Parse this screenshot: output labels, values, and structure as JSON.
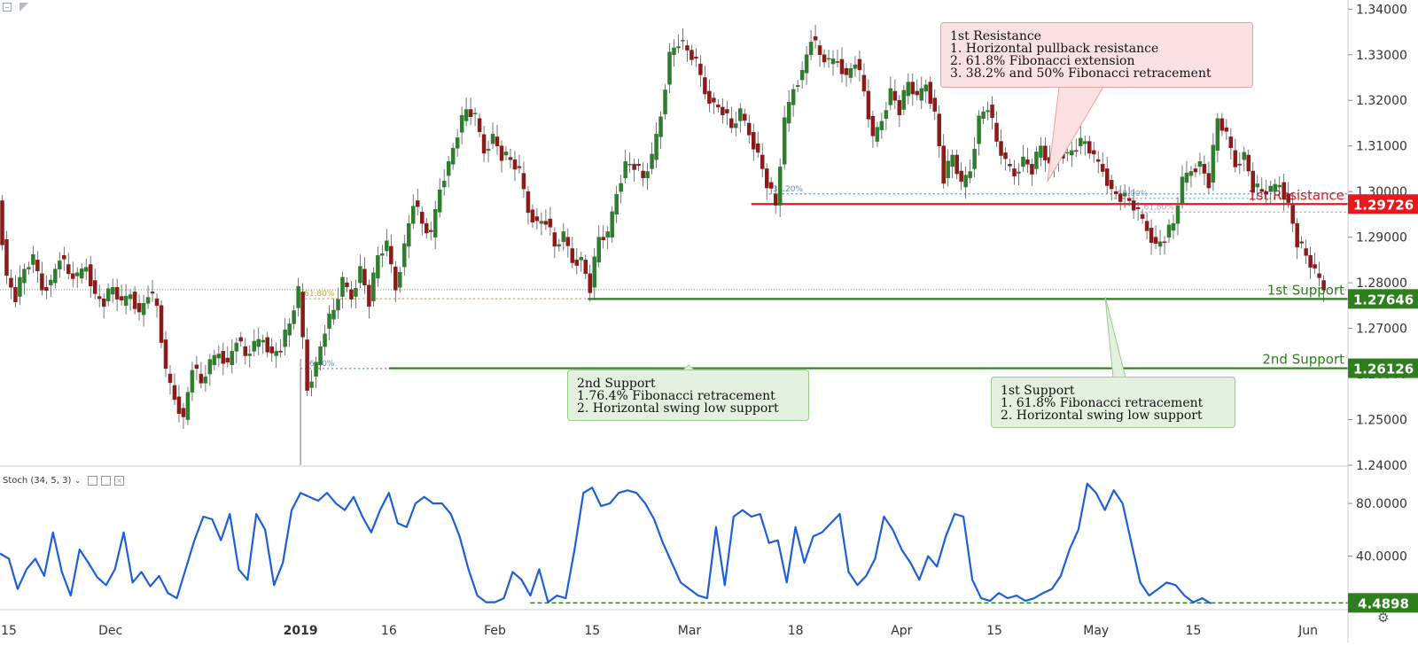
{
  "window": {
    "collapse_icon": "square-minus-icon",
    "flag_icon": "corner-flag-icon"
  },
  "chart_data": {
    "type": "line",
    "instrument_panel": {
      "ylim": [
        1.24,
        1.342
      ],
      "y_ticks": [
        "1.34000",
        "1.33000",
        "1.32000",
        "1.31000",
        "1.30000",
        "1.29000",
        "1.28000",
        "1.27000",
        "1.26000",
        "1.25000",
        "1.24000"
      ],
      "price_path": [
        [
          0,
          1.298
        ],
        [
          2,
          1.281
        ],
        [
          4,
          1.277
        ],
        [
          6,
          1.283
        ],
        [
          8,
          1.285
        ],
        [
          10,
          1.279
        ],
        [
          12,
          1.28
        ],
        [
          14,
          1.286
        ],
        [
          16,
          1.282
        ],
        [
          18,
          1.281
        ],
        [
          20,
          1.284
        ],
        [
          22,
          1.277
        ],
        [
          24,
          1.276
        ],
        [
          26,
          1.279
        ],
        [
          28,
          1.275
        ],
        [
          30,
          1.278
        ],
        [
          32,
          1.273
        ],
        [
          34,
          1.278
        ],
        [
          36,
          1.275
        ],
        [
          38,
          1.26
        ],
        [
          40,
          1.255
        ],
        [
          42,
          1.25
        ],
        [
          44,
          1.262
        ],
        [
          46,
          1.258
        ],
        [
          48,
          1.262
        ],
        [
          50,
          1.265
        ],
        [
          52,
          1.262
        ],
        [
          54,
          1.268
        ],
        [
          56,
          1.264
        ],
        [
          58,
          1.266
        ],
        [
          60,
          1.268
        ],
        [
          62,
          1.264
        ],
        [
          64,
          1.266
        ],
        [
          66,
          1.271
        ],
        [
          68,
          1.278
        ],
        [
          70,
          1.257
        ],
        [
          72,
          1.262
        ],
        [
          74,
          1.27
        ],
        [
          76,
          1.274
        ],
        [
          78,
          1.28
        ],
        [
          80,
          1.277
        ],
        [
          82,
          1.283
        ],
        [
          84,
          1.276
        ],
        [
          86,
          1.286
        ],
        [
          88,
          1.288
        ],
        [
          90,
          1.279
        ],
        [
          92,
          1.288
        ],
        [
          94,
          1.298
        ],
        [
          96,
          1.293
        ],
        [
          98,
          1.29
        ],
        [
          100,
          1.301
        ],
        [
          102,
          1.306
        ],
        [
          104,
          1.313
        ],
        [
          106,
          1.318
        ],
        [
          108,
          1.316
        ],
        [
          110,
          1.309
        ],
        [
          112,
          1.312
        ],
        [
          114,
          1.308
        ],
        [
          116,
          1.307
        ],
        [
          118,
          1.304
        ],
        [
          120,
          1.296
        ],
        [
          122,
          1.293
        ],
        [
          124,
          1.294
        ],
        [
          126,
          1.288
        ],
        [
          128,
          1.29
        ],
        [
          130,
          1.285
        ],
        [
          132,
          1.285
        ],
        [
          134,
          1.279
        ],
        [
          136,
          1.29
        ],
        [
          138,
          1.29
        ],
        [
          140,
          1.3
        ],
        [
          142,
          1.306
        ],
        [
          144,
          1.306
        ],
        [
          146,
          1.303
        ],
        [
          148,
          1.307
        ],
        [
          150,
          1.317
        ],
        [
          152,
          1.33
        ],
        [
          154,
          1.333
        ],
        [
          156,
          1.331
        ],
        [
          158,
          1.328
        ],
        [
          160,
          1.322
        ],
        [
          162,
          1.319
        ],
        [
          164,
          1.318
        ],
        [
          166,
          1.314
        ],
        [
          168,
          1.317
        ],
        [
          170,
          1.313
        ],
        [
          172,
          1.308
        ],
        [
          174,
          1.302
        ],
        [
          176,
          1.297
        ],
        [
          178,
          1.315
        ],
        [
          180,
          1.323
        ],
        [
          182,
          1.326
        ],
        [
          184,
          1.334
        ],
        [
          186,
          1.33
        ],
        [
          188,
          1.328
        ],
        [
          190,
          1.329
        ],
        [
          192,
          1.325
        ],
        [
          194,
          1.329
        ],
        [
          196,
          1.322
        ],
        [
          198,
          1.311
        ],
        [
          200,
          1.316
        ],
        [
          202,
          1.322
        ],
        [
          204,
          1.318
        ],
        [
          206,
          1.324
        ],
        [
          208,
          1.32
        ],
        [
          210,
          1.324
        ],
        [
          212,
          1.317
        ],
        [
          214,
          1.303
        ],
        [
          216,
          1.308
        ],
        [
          218,
          1.301
        ],
        [
          220,
          1.305
        ],
        [
          222,
          1.316
        ],
        [
          224,
          1.319
        ],
        [
          226,
          1.311
        ],
        [
          228,
          1.306
        ],
        [
          230,
          1.304
        ],
        [
          232,
          1.307
        ],
        [
          234,
          1.305
        ],
        [
          236,
          1.31
        ],
        [
          238,
          1.305
        ],
        [
          240,
          1.309
        ],
        [
          242,
          1.308
        ],
        [
          244,
          1.31
        ],
        [
          246,
          1.311
        ],
        [
          248,
          1.307
        ],
        [
          250,
          1.305
        ],
        [
          252,
          1.3
        ],
        [
          254,
          1.299
        ],
        [
          256,
          1.298
        ],
        [
          258,
          1.295
        ],
        [
          260,
          1.292
        ],
        [
          262,
          1.288
        ],
        [
          264,
          1.29
        ],
        [
          266,
          1.293
        ],
        [
          268,
          1.302
        ],
        [
          270,
          1.305
        ],
        [
          272,
          1.306
        ],
        [
          274,
          1.302
        ],
        [
          276,
          1.316
        ],
        [
          278,
          1.312
        ],
        [
          280,
          1.306
        ],
        [
          282,
          1.308
        ],
        [
          284,
          1.301
        ],
        [
          286,
          1.3
        ],
        [
          288,
          1.3
        ],
        [
          290,
          1.302
        ],
        [
          292,
          1.297
        ],
        [
          294,
          1.289
        ],
        [
          296,
          1.286
        ],
        [
          298,
          1.282
        ],
        [
          300,
          1.279
        ]
      ]
    },
    "oscillator_panel": {
      "label": "Stoch (34, 5, 3)",
      "ylim": [
        0,
        107
      ],
      "y_ticks": [
        "80.0000",
        "40.0000"
      ],
      "k_path": [
        [
          0,
          42
        ],
        [
          2,
          38
        ],
        [
          4,
          15
        ],
        [
          6,
          30
        ],
        [
          8,
          38
        ],
        [
          10,
          25
        ],
        [
          12,
          58
        ],
        [
          14,
          28
        ],
        [
          16,
          10
        ],
        [
          18,
          45
        ],
        [
          20,
          35
        ],
        [
          22,
          24
        ],
        [
          24,
          18
        ],
        [
          26,
          30
        ],
        [
          28,
          58
        ],
        [
          30,
          20
        ],
        [
          32,
          28
        ],
        [
          34,
          17
        ],
        [
          36,
          25
        ],
        [
          38,
          12
        ],
        [
          40,
          8
        ],
        [
          42,
          30
        ],
        [
          44,
          52
        ],
        [
          46,
          70
        ],
        [
          48,
          68
        ],
        [
          50,
          52
        ],
        [
          52,
          72
        ],
        [
          54,
          30
        ],
        [
          56,
          22
        ],
        [
          58,
          72
        ],
        [
          60,
          60
        ],
        [
          62,
          18
        ],
        [
          64,
          35
        ],
        [
          66,
          75
        ],
        [
          68,
          88
        ],
        [
          70,
          85
        ],
        [
          72,
          82
        ],
        [
          74,
          88
        ],
        [
          76,
          80
        ],
        [
          78,
          75
        ],
        [
          80,
          85
        ],
        [
          82,
          70
        ],
        [
          84,
          58
        ],
        [
          86,
          75
        ],
        [
          88,
          88
        ],
        [
          90,
          65
        ],
        [
          92,
          62
        ],
        [
          94,
          80
        ],
        [
          96,
          85
        ],
        [
          98,
          80
        ],
        [
          100,
          80
        ],
        [
          102,
          72
        ],
        [
          104,
          55
        ],
        [
          106,
          30
        ],
        [
          108,
          10
        ],
        [
          110,
          5
        ],
        [
          112,
          5
        ],
        [
          114,
          8
        ],
        [
          116,
          28
        ],
        [
          118,
          22
        ],
        [
          120,
          10
        ],
        [
          122,
          30
        ],
        [
          124,
          5
        ],
        [
          126,
          10
        ],
        [
          128,
          8
        ],
        [
          130,
          45
        ],
        [
          132,
          88
        ],
        [
          134,
          92
        ],
        [
          136,
          78
        ],
        [
          138,
          80
        ],
        [
          140,
          88
        ],
        [
          142,
          90
        ],
        [
          144,
          88
        ],
        [
          146,
          80
        ],
        [
          148,
          68
        ],
        [
          150,
          50
        ],
        [
          152,
          35
        ],
        [
          154,
          20
        ],
        [
          156,
          15
        ],
        [
          158,
          10
        ],
        [
          160,
          8
        ],
        [
          162,
          62
        ],
        [
          164,
          18
        ],
        [
          166,
          70
        ],
        [
          168,
          75
        ],
        [
          170,
          70
        ],
        [
          172,
          72
        ],
        [
          174,
          50
        ],
        [
          176,
          52
        ],
        [
          178,
          20
        ],
        [
          180,
          62
        ],
        [
          182,
          35
        ],
        [
          184,
          55
        ],
        [
          186,
          58
        ],
        [
          188,
          65
        ],
        [
          190,
          72
        ],
        [
          192,
          28
        ],
        [
          194,
          18
        ],
        [
          196,
          25
        ],
        [
          198,
          38
        ],
        [
          200,
          70
        ],
        [
          202,
          60
        ],
        [
          204,
          45
        ],
        [
          206,
          35
        ],
        [
          208,
          22
        ],
        [
          210,
          40
        ],
        [
          212,
          32
        ],
        [
          214,
          55
        ],
        [
          216,
          72
        ],
        [
          218,
          70
        ],
        [
          220,
          22
        ],
        [
          222,
          8
        ],
        [
          224,
          6
        ],
        [
          226,
          12
        ],
        [
          228,
          8
        ],
        [
          230,
          10
        ],
        [
          232,
          6
        ],
        [
          234,
          8
        ],
        [
          236,
          12
        ],
        [
          238,
          15
        ],
        [
          240,
          25
        ],
        [
          242,
          45
        ],
        [
          244,
          60
        ],
        [
          246,
          95
        ],
        [
          248,
          88
        ],
        [
          250,
          75
        ],
        [
          252,
          90
        ],
        [
          254,
          80
        ],
        [
          256,
          50
        ],
        [
          258,
          20
        ],
        [
          260,
          10
        ],
        [
          262,
          15
        ],
        [
          264,
          20
        ],
        [
          266,
          18
        ],
        [
          268,
          10
        ],
        [
          270,
          5
        ],
        [
          272,
          8
        ],
        [
          274,
          4
        ]
      ]
    },
    "x_axis": {
      "ticks": [
        {
          "label": "15",
          "pos": 2
        },
        {
          "label": "Dec",
          "pos": 25
        },
        {
          "label": "2019",
          "pos": 68,
          "bold": true
        },
        {
          "label": "16",
          "pos": 88
        },
        {
          "label": "Feb",
          "pos": 112
        },
        {
          "label": "15",
          "pos": 134
        },
        {
          "label": "Mar",
          "pos": 156
        },
        {
          "label": "18",
          "pos": 180
        },
        {
          "label": "Apr",
          "pos": 204
        },
        {
          "label": "15",
          "pos": 225
        },
        {
          "label": "May",
          "pos": 248
        },
        {
          "label": "15",
          "pos": 270
        },
        {
          "label": "Jun",
          "pos": 296
        }
      ]
    },
    "levels": [
      {
        "name": "1st Resistance",
        "price": 1.29726,
        "value_label": "1.29726",
        "color": "#e8191c",
        "from": 170
      },
      {
        "name": "1st Support",
        "price": 1.27646,
        "value_label": "1.27646",
        "color": "#2e7d1f",
        "from": 133
      },
      {
        "name": "2nd Support",
        "price": 1.26126,
        "value_label": "1.26126",
        "color": "#2e7d1f",
        "from": 88
      }
    ],
    "stoch_level": {
      "value": 4.4898,
      "value_label": "4.4898",
      "color": "#2e7d1f",
      "from": 120
    },
    "fib_marks": [
      {
        "label": "38.20%",
        "price": 1.2995,
        "from": 174,
        "to": 305,
        "color": "#5b8fc9"
      },
      {
        "label": "50.00%",
        "price": 1.2985,
        "from": 252,
        "to": 305,
        "color": "#7da7e0"
      },
      {
        "label": "61.80%",
        "price": 1.2955,
        "from": 258,
        "to": 305,
        "color": "#b79ad6"
      },
      {
        "label": "61.80%",
        "price": 1.2765,
        "from": 68,
        "to": 133,
        "color": "#d4a236"
      },
      {
        "label": "76.40%",
        "price": 1.2612,
        "from": 68,
        "to": 88,
        "color": "#5b8fc9"
      }
    ],
    "annotations": {
      "resistance": [
        "1st Resistance",
        "1. Horizontal pullback resistance",
        "2. 61.8% Fibonacci extension",
        "3. 38.2% and 50% Fibonacci retracement"
      ],
      "support1": [
        "1st Support",
        "1. 61.8% Fibonacci retracement",
        "2. Horizontal swing low support"
      ],
      "support2": [
        "2nd Support",
        "1.76.4% Fibonacci retracement",
        "2. Horizontal swing low support"
      ]
    },
    "colors": {
      "up": "#2f7d2f",
      "down": "#8b1a1a",
      "stoch": "#1f5fd6"
    }
  },
  "footer": {
    "settings_icon": "gear-icon"
  }
}
